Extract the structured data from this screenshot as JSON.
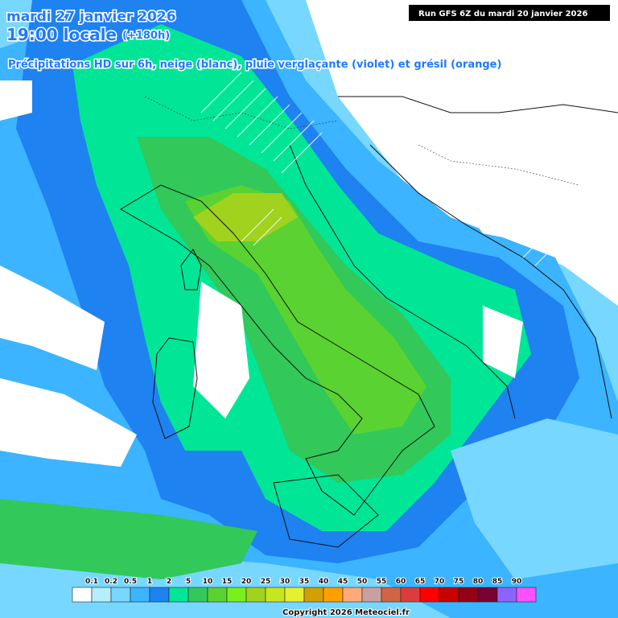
{
  "header": {
    "date": "mardi 27 janvier 2026",
    "time": "19:00 locale",
    "lead": "(+180h)",
    "subtitle": "Précipitations HD sur 6h, neige (blanc), pluie verglaçante (violet) et grésil (orange)",
    "run": "Run GFS 6Z du mardi 20 janvier 2026"
  },
  "legend": {
    "labels": [
      "0.1",
      "0.2",
      "0.5",
      "1",
      "2",
      "5",
      "10",
      "15",
      "20",
      "25",
      "30",
      "35",
      "40",
      "45",
      "50",
      "55",
      "60",
      "65",
      "70",
      "75",
      "80",
      "85",
      "90"
    ],
    "colors": [
      "#ffffff",
      "#b4f0fa",
      "#78d7ff",
      "#3cb4ff",
      "#1e82f0",
      "#00e696",
      "#32c85a",
      "#5ad232",
      "#78f01e",
      "#a0d21e",
      "#c8e61e",
      "#e6f032",
      "#d2a000",
      "#ffa000",
      "#ffaa78",
      "#c8a0a0",
      "#d26446",
      "#dc3c3c",
      "#ff0000",
      "#c80000",
      "#960014",
      "#780032",
      "#8c64ff",
      "#ff50ff"
    ]
  },
  "footer": {
    "copyright": "Copyright 2026 Meteociel.fr"
  }
}
